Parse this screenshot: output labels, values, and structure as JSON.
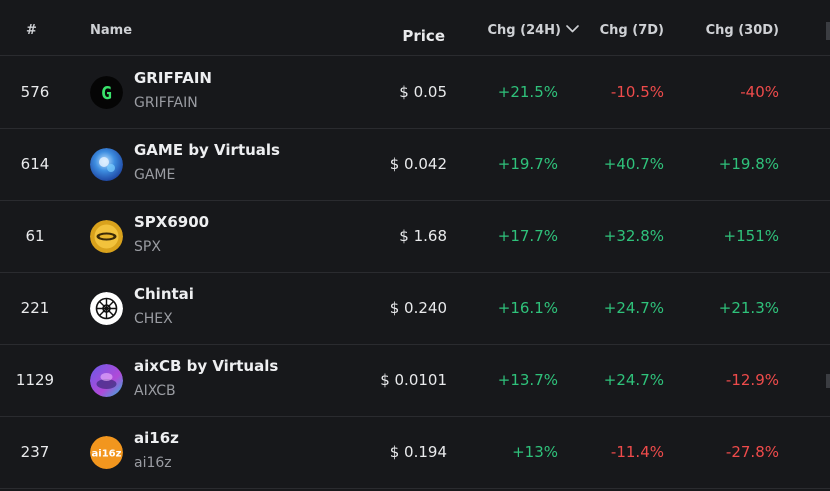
{
  "colors": {
    "background": "#17181b",
    "positive": "#2fc27b",
    "negative": "#ef4b4b",
    "text": "#e9eaec",
    "muted": "#9a9ca2"
  },
  "header": {
    "rank": "#",
    "name": "Name",
    "price": "Price",
    "chg_24h": "Chg (24H)",
    "chg_7d": "Chg (7D)",
    "chg_30d": "Chg (30D)",
    "sort_icon": "chevron-down-icon"
  },
  "rows": [
    {
      "rank": "576",
      "name": "GRIFFAIN",
      "symbol": "GRIFFAIN",
      "price": "$ 0.05",
      "chg_24h": "+21.5%",
      "chg_7d": "-10.5%",
      "chg_30d": "-40%",
      "logo": "griffain-logo-icon"
    },
    {
      "rank": "614",
      "name": "GAME by Virtuals",
      "symbol": "GAME",
      "price": "$ 0.042",
      "chg_24h": "+19.7%",
      "chg_7d": "+40.7%",
      "chg_30d": "+19.8%",
      "logo": "game-logo-icon"
    },
    {
      "rank": "61",
      "name": "SPX6900",
      "symbol": "SPX",
      "price": "$ 1.68",
      "chg_24h": "+17.7%",
      "chg_7d": "+32.8%",
      "chg_30d": "+151%",
      "logo": "spx-logo-icon"
    },
    {
      "rank": "221",
      "name": "Chintai",
      "symbol": "CHEX",
      "price": "$ 0.240",
      "chg_24h": "+16.1%",
      "chg_7d": "+24.7%",
      "chg_30d": "+21.3%",
      "logo": "chintai-logo-icon"
    },
    {
      "rank": "1129",
      "name": "aixCB by Virtuals",
      "symbol": "AIXCB",
      "price": "$ 0.0101",
      "chg_24h": "+13.7%",
      "chg_7d": "+24.7%",
      "chg_30d": "-12.9%",
      "logo": "aixcb-logo-icon"
    },
    {
      "rank": "237",
      "name": "ai16z",
      "symbol": "ai16z",
      "price": "$ 0.194",
      "chg_24h": "+13%",
      "chg_7d": "-11.4%",
      "chg_30d": "-27.8%",
      "logo": "ai16z-logo-icon"
    }
  ]
}
